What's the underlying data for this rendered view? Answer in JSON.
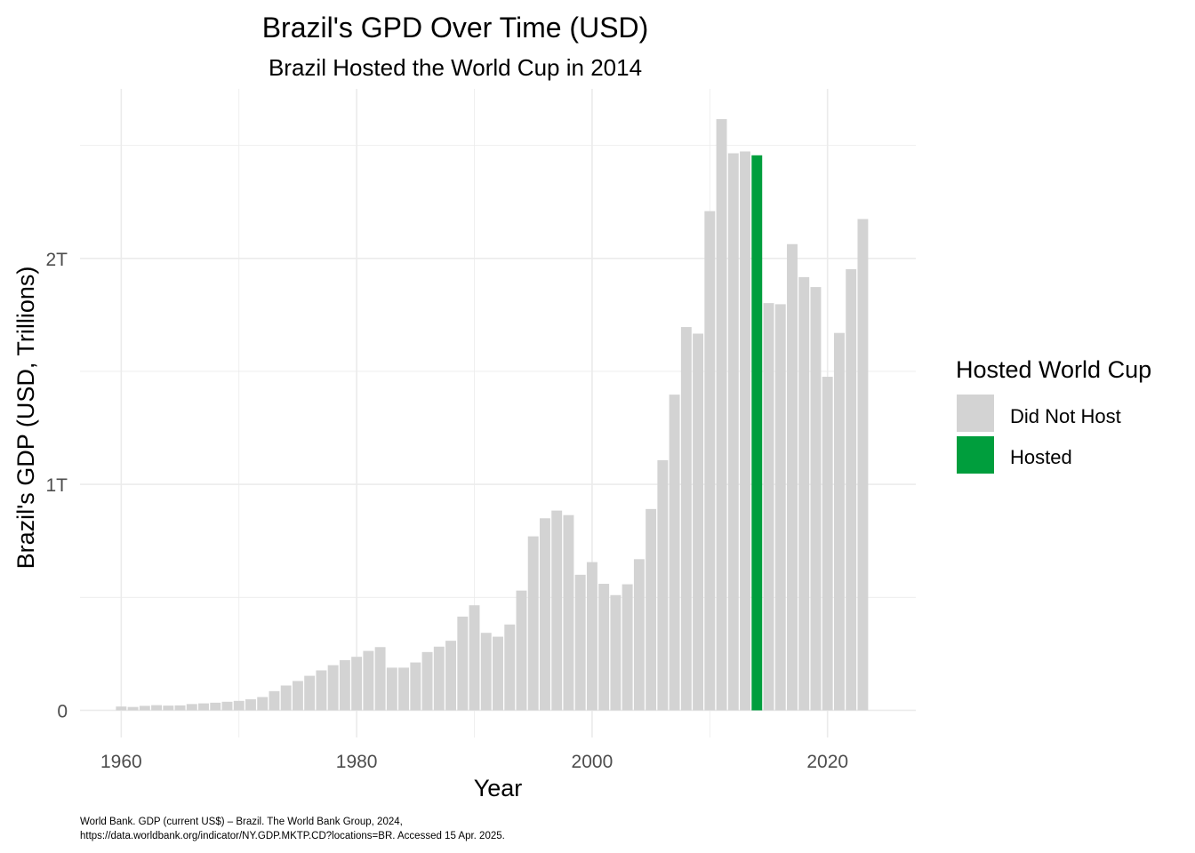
{
  "chart_data": {
    "type": "bar",
    "title": "Brazil's GPD Over Time (USD)",
    "subtitle": "Brazil Hosted the World Cup in 2014",
    "xlabel": "Year",
    "ylabel": "Brazil's GDP (USD, Trillions)",
    "x_ticks": [
      "1960",
      "1980",
      "2000",
      "2020"
    ],
    "y_ticks": [
      "0",
      "1T",
      "2T"
    ],
    "xlim": [
      1956.5,
      2027.5
    ],
    "ylim": [
      -0.12,
      2.75
    ],
    "grid": true,
    "legend": {
      "title": "Hosted World Cup",
      "position": "right",
      "entries": [
        {
          "label": "Did Not Host",
          "color": "#d3d3d3"
        },
        {
          "label": "Hosted",
          "color": "#009e3d"
        }
      ]
    },
    "hosted_year": 2014,
    "years": [
      1960,
      1961,
      1962,
      1963,
      1964,
      1965,
      1966,
      1967,
      1968,
      1969,
      1970,
      1971,
      1972,
      1973,
      1974,
      1975,
      1976,
      1977,
      1978,
      1979,
      1980,
      1981,
      1982,
      1983,
      1984,
      1985,
      1986,
      1987,
      1988,
      1989,
      1990,
      1991,
      1992,
      1993,
      1994,
      1995,
      1996,
      1997,
      1998,
      1999,
      2000,
      2001,
      2002,
      2003,
      2004,
      2005,
      2006,
      2007,
      2008,
      2009,
      2010,
      2011,
      2012,
      2013,
      2014,
      2015,
      2016,
      2017,
      2018,
      2019,
      2020,
      2021,
      2022,
      2023
    ],
    "values": [
      0.017,
      0.015,
      0.02,
      0.023,
      0.021,
      0.022,
      0.028,
      0.031,
      0.034,
      0.038,
      0.042,
      0.049,
      0.059,
      0.085,
      0.11,
      0.13,
      0.153,
      0.177,
      0.2,
      0.222,
      0.237,
      0.263,
      0.28,
      0.189,
      0.189,
      0.212,
      0.258,
      0.282,
      0.308,
      0.415,
      0.465,
      0.343,
      0.326,
      0.38,
      0.53,
      0.77,
      0.85,
      0.884,
      0.864,
      0.6,
      0.656,
      0.56,
      0.51,
      0.558,
      0.669,
      0.891,
      1.107,
      1.397,
      1.696,
      1.667,
      2.209,
      2.616,
      2.465,
      2.473,
      2.456,
      1.802,
      1.797,
      2.063,
      1.917,
      1.873,
      1.476,
      1.67,
      1.952,
      2.174
    ],
    "caption": [
      "World Bank. GDP (current US$) – Brazil. The World Bank Group, 2024,",
      "https://data.worldbank.org/indicator/NY.GDP.MKTP.CD?locations=BR. Accessed 15 Apr. 2025."
    ]
  }
}
